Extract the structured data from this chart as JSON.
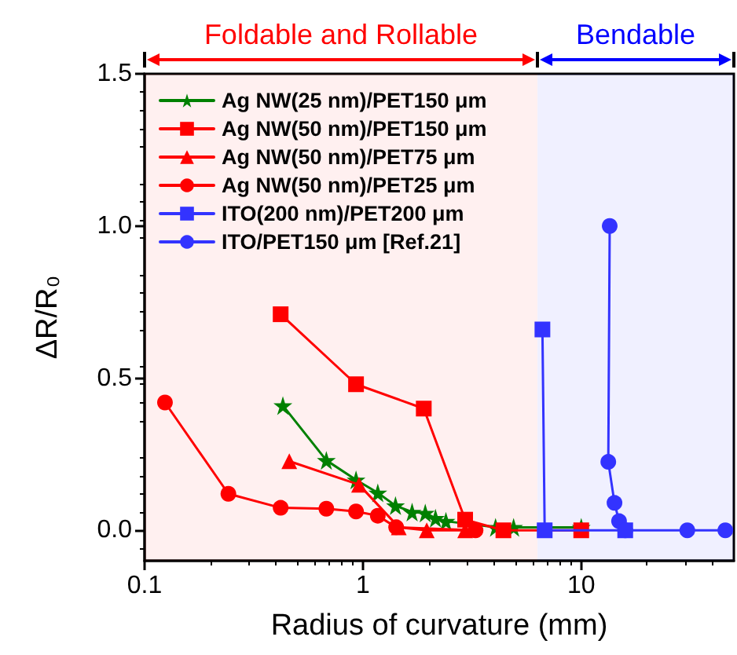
{
  "chart_data": {
    "type": "line",
    "xlabel": "Radius of curvature (mm)",
    "ylabel": "ΔR/R₀",
    "log": "x",
    "xlim": [
      0.1,
      50
    ],
    "xticks": [
      0.1,
      1,
      10
    ],
    "ylim": [
      -0.1,
      1.5
    ],
    "yticks": [
      {
        "value": 0,
        "label": "0.0"
      },
      {
        "value": 0.5,
        "label": "0.5"
      },
      {
        "value": 1,
        "label": "1.0"
      },
      {
        "value": 1.5,
        "label": "1.5"
      }
    ],
    "grid": false,
    "legend": "top left",
    "bands": [
      {
        "axis": "x",
        "from": 0.1,
        "to": 6.3,
        "label": "Foldable and Rollable",
        "color": "#ff0000"
      },
      {
        "axis": "x",
        "from": 6.3,
        "to": 50,
        "label": "Bendable",
        "color": "#0000ff"
      }
    ],
    "series": [
      {
        "name": "Ag NW(25 nm)/PET150 μm",
        "color": "#008000",
        "marker": "star",
        "x": [
          0.43,
          0.68,
          0.93,
          1.17,
          1.41,
          1.68,
          1.93,
          2.15,
          2.4,
          4.05,
          4.9,
          10
        ],
        "values": [
          0.41,
          0.23,
          0.166,
          0.123,
          0.081,
          0.06,
          0.057,
          0.04,
          0.03,
          0.01,
          0.01,
          0.01
        ]
      },
      {
        "name": "Ag NW(50 nm)/PET150 μm",
        "color": "#ff0000",
        "marker": "square",
        "x": [
          0.42,
          0.93,
          1.9,
          2.94,
          4.4,
          10
        ],
        "values": [
          0.71,
          0.48,
          0.4,
          0.035,
          0,
          0
        ]
      },
      {
        "name": "Ag NW(50 nm)/PET75 μm",
        "color": "#ff0000",
        "marker": "triangle",
        "x": [
          0.46,
          0.96,
          1.46,
          1.96,
          2.94
        ],
        "values": [
          0.227,
          0.15,
          0.01,
          0,
          0
        ]
      },
      {
        "name": "Ag NW(50 nm)/PET25 μm",
        "color": "#ff0000",
        "marker": "circle",
        "x": [
          0.124,
          0.242,
          0.42,
          0.68,
          0.93,
          1.17,
          1.42,
          3.28
        ],
        "values": [
          0.42,
          0.12,
          0.074,
          0.071,
          0.062,
          0.048,
          0.01,
          0
        ]
      },
      {
        "name": "ITO(200 nm)/PET200 μm",
        "color": "#3333ff",
        "marker": "square",
        "x": [
          6.64,
          6.8,
          15.9
        ],
        "values": [
          0.66,
          0,
          0
        ]
      },
      {
        "name": "ITO/PET150 μm [Ref.21]",
        "color": "#3333ff",
        "marker": "circle",
        "x": [
          13.5,
          13.3,
          14.2,
          14.9,
          15.9,
          30.6,
          45.7
        ],
        "values": [
          1.0,
          0.225,
          0.09,
          0.03,
          0,
          0,
          0
        ]
      }
    ]
  }
}
